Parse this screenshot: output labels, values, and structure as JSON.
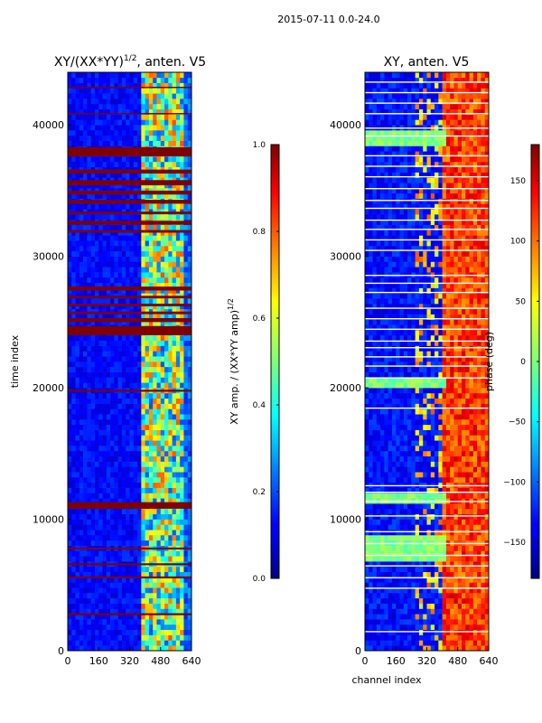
{
  "figure": {
    "suptitle": "2015-07-11 0.0-24.0"
  },
  "chart_data": [
    {
      "type": "heatmap",
      "title": "XY/(XX*YY)^{1/2}, anten. V5",
      "title_main": "XY/(XX*YY)",
      "title_exp": "1/2",
      "title_tail": ", anten. V5",
      "xlabel": "",
      "ylabel": "time index",
      "xlim": [
        0,
        640
      ],
      "ylim": [
        0,
        44000
      ],
      "xticks": [
        0,
        160,
        320,
        480,
        640
      ],
      "yticks": [
        0,
        10000,
        20000,
        30000,
        40000
      ],
      "colorbar": {
        "label": "XY amp. / (XX*YY amp)^{1/2}",
        "label_main": "XY amp. / (XX*YY amp)",
        "label_exp": "1/2",
        "range": [
          0,
          1
        ],
        "ticks": [
          "0.0",
          "0.2",
          "0.4",
          "0.6",
          "0.8",
          "1.0"
        ],
        "tick_values": [
          0,
          0.2,
          0.4,
          0.6,
          0.8,
          1.0
        ]
      },
      "description": "amplitude ratio mostly low (~0.1) across channels 0-380; bright fluctuating columns 380-610; saturated (1.0) horizontal bands",
      "saturated_bands": [
        {
          "y0": 2700,
          "y1": 2850
        },
        {
          "y0": 5500,
          "y1": 5650
        },
        {
          "y0": 6500,
          "y1": 6650
        },
        {
          "y0": 7700,
          "y1": 7850
        },
        {
          "y0": 10800,
          "y1": 11300
        },
        {
          "y0": 19700,
          "y1": 19850
        },
        {
          "y0": 24000,
          "y1": 24700
        },
        {
          "y0": 25000,
          "y1": 25300
        },
        {
          "y0": 25600,
          "y1": 25800
        },
        {
          "y0": 26200,
          "y1": 26400
        },
        {
          "y0": 26800,
          "y1": 27000
        },
        {
          "y0": 27400,
          "y1": 27700
        },
        {
          "y0": 31800,
          "y1": 32000
        },
        {
          "y0": 32400,
          "y1": 32700
        },
        {
          "y0": 33200,
          "y1": 33400
        },
        {
          "y0": 34000,
          "y1": 34300
        },
        {
          "y0": 34700,
          "y1": 35000
        },
        {
          "y0": 35400,
          "y1": 35800
        },
        {
          "y0": 36300,
          "y1": 36600
        },
        {
          "y0": 37600,
          "y1": 38300
        },
        {
          "y0": 40800,
          "y1": 40900
        },
        {
          "y0": 42800,
          "y1": 42900
        }
      ]
    },
    {
      "type": "heatmap",
      "title": "XY, anten. V5",
      "xlabel": "channel index",
      "ylabel": "",
      "xlim": [
        0,
        640
      ],
      "ylim": [
        0,
        44000
      ],
      "xticks": [
        0,
        160,
        320,
        480,
        640
      ],
      "yticks": [
        0,
        10000,
        20000,
        30000,
        40000
      ],
      "colorbar": {
        "label": "phase (deg)",
        "range": [
          -180,
          180
        ],
        "ticks": [
          "−150",
          "−100",
          "−50",
          "0",
          "50",
          "100",
          "150"
        ],
        "tick_values": [
          -150,
          -100,
          -50,
          0,
          50,
          100,
          150
        ]
      },
      "description": "phase mostly blue (~-140 deg) in channels 0-400; warm orange/red (~100-160 deg) in channels 400-640; many flagged white rows",
      "flagged_rows": [
        1500,
        4800,
        5600,
        6500,
        7300,
        8200,
        9100,
        10300,
        11400,
        12100,
        12600,
        18500,
        20800,
        21700,
        22400,
        23100,
        23600,
        24500,
        25300,
        26100,
        27300,
        28000,
        28600,
        30500,
        31300,
        32100,
        32800,
        33700,
        34300,
        35200,
        36100,
        36900,
        37700,
        39200,
        39800,
        40900,
        41700,
        42500,
        43300
      ],
      "green_bands": [
        {
          "y0": 6700,
          "y1": 8800
        },
        {
          "y0": 11100,
          "y1": 11900
        },
        {
          "y0": 20000,
          "y1": 20600
        },
        {
          "y0": 38600,
          "y1": 39600
        }
      ]
    }
  ]
}
